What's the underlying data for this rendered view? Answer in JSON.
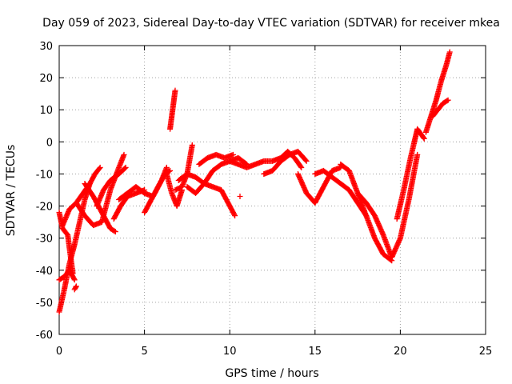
{
  "chart_data": {
    "type": "scatter",
    "title": "Day 059 of 2023, Sidereal Day-to-day VTEC variation (SDTVAR) for receiver mkea",
    "xlabel": "GPS time / hours",
    "ylabel": "SDTVAR / TECUs",
    "xlim": [
      0,
      25
    ],
    "ylim": [
      -60,
      30
    ],
    "xticks": [
      0,
      5,
      10,
      15,
      20,
      25
    ],
    "yticks": [
      -60,
      -50,
      -40,
      -30,
      -20,
      -10,
      0,
      10,
      20,
      30
    ],
    "grid": true,
    "marker": "+",
    "color": "#ff0000",
    "series": [
      {
        "name": "s1",
        "x": [
          0.0,
          0.3,
          0.6,
          0.9,
          1.2,
          1.5,
          1.8,
          2.1,
          2.4
        ],
        "y": [
          -53,
          -46,
          -38,
          -32,
          -25,
          -18,
          -13,
          -10,
          -8
        ]
      },
      {
        "name": "s2",
        "x": [
          0.0,
          0.2,
          0.5,
          0.8
        ],
        "y": [
          -22,
          -27,
          -29,
          -41
        ]
      },
      {
        "name": "s3",
        "x": [
          0.0,
          0.3,
          0.6,
          0.9
        ],
        "y": [
          -43,
          -42,
          -40,
          -43
        ]
      },
      {
        "name": "s4",
        "x": [
          0.2,
          0.6,
          1.0,
          1.4,
          1.8
        ],
        "y": [
          -26,
          -21,
          -19,
          -16,
          -13
        ]
      },
      {
        "name": "s5",
        "x": [
          1.0,
          1.5,
          2.0,
          2.5,
          3.0,
          3.5,
          3.8
        ],
        "y": [
          -19,
          -23,
          -26,
          -25,
          -15,
          -8,
          -4
        ]
      },
      {
        "name": "s6",
        "x": [
          1.5,
          2.0,
          2.5,
          3.0,
          3.3
        ],
        "y": [
          -13,
          -17,
          -22,
          -27,
          -28
        ]
      },
      {
        "name": "s7",
        "x": [
          2.2,
          2.6,
          3.0,
          3.5,
          3.9
        ],
        "y": [
          -20,
          -15,
          -12,
          -10,
          -8
        ]
      },
      {
        "name": "s8",
        "x": [
          3.2,
          3.6,
          4.0,
          4.5,
          5.0
        ],
        "y": [
          -24,
          -20,
          -17,
          -16,
          -15
        ]
      },
      {
        "name": "s9",
        "x": [
          3.5,
          4.0,
          4.5,
          5.0,
          5.5,
          6.0,
          6.3
        ],
        "y": [
          -18,
          -16,
          -14,
          -16,
          -17,
          -12,
          -8
        ]
      },
      {
        "name": "s10",
        "x": [
          5.0,
          5.4,
          5.8,
          6.2,
          6.5
        ],
        "y": [
          -22,
          -18,
          -14,
          -10,
          -9
        ]
      },
      {
        "name": "s11",
        "x": [
          6.3,
          6.6,
          6.9,
          7.2
        ],
        "y": [
          -10,
          -16,
          -20,
          -15
        ]
      },
      {
        "name": "s12",
        "x": [
          6.5,
          6.6,
          6.7,
          6.8
        ],
        "y": [
          4,
          8,
          12,
          16
        ]
      },
      {
        "name": "s13",
        "x": [
          6.8,
          7.2,
          7.5,
          7.8
        ],
        "y": [
          -15,
          -14,
          -10,
          -1
        ]
      },
      {
        "name": "s14",
        "x": [
          7.0,
          7.5,
          8.0,
          8.5,
          9.0,
          9.5,
          10.0,
          10.3
        ],
        "y": [
          -12,
          -10,
          -11,
          -13,
          -14,
          -15,
          -20,
          -23
        ]
      },
      {
        "name": "s15",
        "x": [
          7.5,
          8.0,
          8.5,
          9.0,
          9.5,
          10.0,
          10.5,
          11.0
        ],
        "y": [
          -14,
          -16,
          -13,
          -9,
          -7,
          -6,
          -5,
          -7
        ]
      },
      {
        "name": "s16",
        "x": [
          8.2,
          8.7,
          9.2,
          9.7,
          10.2
        ],
        "y": [
          -7,
          -5,
          -4,
          -5,
          -4
        ]
      },
      {
        "name": "s17",
        "x": [
          10.0,
          10.5,
          11.0,
          11.5,
          12.0,
          12.5,
          13.0,
          13.4,
          13.8,
          14.2
        ],
        "y": [
          -6,
          -7,
          -8,
          -7,
          -6,
          -6,
          -5,
          -3,
          -5,
          -8
        ]
      },
      {
        "name": "s18",
        "x": [
          12.0,
          12.5,
          13.0,
          13.5,
          14.0,
          14.5
        ],
        "y": [
          -10,
          -9,
          -6,
          -4,
          -3,
          -6
        ]
      },
      {
        "name": "s19",
        "x": [
          10.6
        ],
        "y": [
          -17
        ]
      },
      {
        "name": "s20",
        "x": [
          14.0,
          14.5,
          15.0,
          15.5,
          16.0,
          16.5
        ],
        "y": [
          -10,
          -16,
          -19,
          -14,
          -9,
          -8
        ]
      },
      {
        "name": "s21",
        "x": [
          15.0,
          15.5,
          16.0,
          16.5,
          17.0,
          17.5,
          18.0
        ],
        "y": [
          -10,
          -9,
          -11,
          -13,
          -15,
          -19,
          -23
        ]
      },
      {
        "name": "s22",
        "x": [
          16.5,
          17.0,
          17.5,
          18.0,
          18.5,
          19.0,
          19.5
        ],
        "y": [
          -7,
          -9,
          -16,
          -23,
          -30,
          -35,
          -37
        ]
      },
      {
        "name": "s23",
        "x": [
          17.5,
          18.0,
          18.5,
          19.0,
          19.5,
          20.0,
          20.5,
          21.0
        ],
        "y": [
          -16,
          -19,
          -23,
          -29,
          -36,
          -30,
          -18,
          -4
        ]
      },
      {
        "name": "s24",
        "x": [
          19.8,
          20.2,
          20.6,
          21.0,
          21.4
        ],
        "y": [
          -24,
          -15,
          -5,
          4,
          1
        ]
      },
      {
        "name": "s25",
        "x": [
          21.5,
          21.8,
          22.1,
          22.4,
          22.7,
          22.9
        ],
        "y": [
          3,
          8,
          13,
          19,
          24,
          28
        ]
      },
      {
        "name": "s26",
        "x": [
          21.9,
          22.2,
          22.5,
          22.8
        ],
        "y": [
          8,
          10,
          12,
          13
        ]
      },
      {
        "name": "s27",
        "x": [
          0.9,
          1.0
        ],
        "y": [
          -46,
          -45
        ]
      }
    ]
  }
}
